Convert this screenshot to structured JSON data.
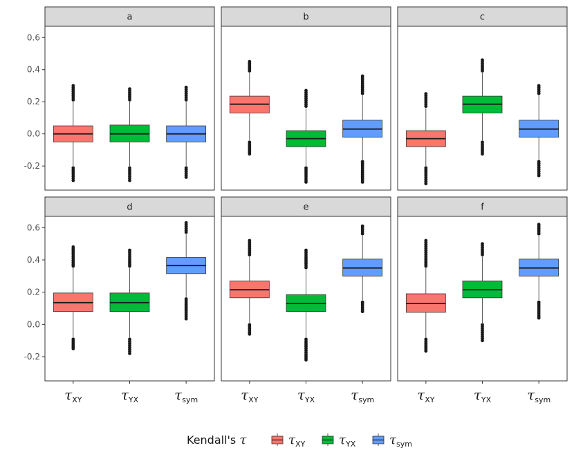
{
  "chart_data": {
    "type": "boxplot",
    "layout": "facet-grid 2x3",
    "y_ticks": [
      -0.2,
      0.0,
      0.2,
      0.4,
      0.6
    ],
    "y_tick_labels": [
      "-0.2",
      "0.0",
      "0.2",
      "0.4",
      "0.6"
    ],
    "ylim": [
      -0.35,
      0.67
    ],
    "categories": [
      {
        "key": "xy",
        "symbol": "τ",
        "sub": "XY",
        "color": "#F8766D"
      },
      {
        "key": "yx",
        "symbol": "τ",
        "sub": "YX",
        "color": "#00BA38"
      },
      {
        "key": "sym",
        "symbol": "τ",
        "sub": "sym",
        "color": "#619CFF"
      }
    ],
    "legend": {
      "title": "Kendall's",
      "title_symbol": "τ",
      "position": "bottom",
      "items": [
        {
          "symbol": "τ",
          "sub": "XY",
          "color": "#F8766D"
        },
        {
          "symbol": "τ",
          "sub": "YX",
          "color": "#00BA38"
        },
        {
          "symbol": "τ",
          "sub": "sym",
          "color": "#619CFF"
        }
      ]
    },
    "facets": [
      {
        "label": "a",
        "boxes": [
          {
            "q1": -0.05,
            "median": 0.0,
            "q3": 0.05,
            "wmin": -0.2,
            "wmax": 0.2,
            "outlier_lo": -0.29,
            "outlier_hi": 0.3
          },
          {
            "q1": -0.05,
            "median": 0.0,
            "q3": 0.055,
            "wmin": -0.2,
            "wmax": 0.2,
            "outlier_lo": -0.29,
            "outlier_hi": 0.28
          },
          {
            "q1": -0.05,
            "median": 0.0,
            "q3": 0.05,
            "wmin": -0.2,
            "wmax": 0.2,
            "outlier_lo": -0.27,
            "outlier_hi": 0.29
          }
        ]
      },
      {
        "label": "b",
        "boxes": [
          {
            "q1": 0.13,
            "median": 0.185,
            "q3": 0.235,
            "wmin": -0.04,
            "wmax": 0.38,
            "outlier_lo": -0.125,
            "outlier_hi": 0.45
          },
          {
            "q1": -0.08,
            "median": -0.03,
            "q3": 0.02,
            "wmin": -0.2,
            "wmax": 0.16,
            "outlier_lo": -0.3,
            "outlier_hi": 0.27
          },
          {
            "q1": -0.02,
            "median": 0.03,
            "q3": 0.085,
            "wmin": -0.16,
            "wmax": 0.24,
            "outlier_lo": -0.3,
            "outlier_hi": 0.36
          }
        ]
      },
      {
        "label": "c",
        "boxes": [
          {
            "q1": -0.08,
            "median": -0.03,
            "q3": 0.02,
            "wmin": -0.2,
            "wmax": 0.16,
            "outlier_lo": -0.31,
            "outlier_hi": 0.25
          },
          {
            "q1": 0.13,
            "median": 0.185,
            "q3": 0.235,
            "wmin": -0.04,
            "wmax": 0.38,
            "outlier_lo": -0.125,
            "outlier_hi": 0.46
          },
          {
            "q1": -0.02,
            "median": 0.03,
            "q3": 0.085,
            "wmin": -0.16,
            "wmax": 0.24,
            "outlier_lo": -0.26,
            "outlier_hi": 0.3
          }
        ]
      },
      {
        "label": "d",
        "boxes": [
          {
            "q1": 0.08,
            "median": 0.135,
            "q3": 0.195,
            "wmin": -0.08,
            "wmax": 0.35,
            "outlier_lo": -0.15,
            "outlier_hi": 0.48
          },
          {
            "q1": 0.08,
            "median": 0.135,
            "q3": 0.195,
            "wmin": -0.08,
            "wmax": 0.35,
            "outlier_lo": -0.18,
            "outlier_hi": 0.46
          },
          {
            "q1": 0.315,
            "median": 0.365,
            "q3": 0.415,
            "wmin": 0.17,
            "wmax": 0.56,
            "outlier_lo": 0.035,
            "outlier_hi": 0.63
          }
        ]
      },
      {
        "label": "e",
        "boxes": [
          {
            "q1": 0.165,
            "median": 0.215,
            "q3": 0.27,
            "wmin": 0.01,
            "wmax": 0.42,
            "outlier_lo": -0.06,
            "outlier_hi": 0.52
          },
          {
            "q1": 0.08,
            "median": 0.13,
            "q3": 0.185,
            "wmin": -0.08,
            "wmax": 0.34,
            "outlier_lo": -0.22,
            "outlier_hi": 0.46
          },
          {
            "q1": 0.3,
            "median": 0.35,
            "q3": 0.405,
            "wmin": 0.15,
            "wmax": 0.55,
            "outlier_lo": 0.08,
            "outlier_hi": 0.61
          }
        ]
      },
      {
        "label": "f",
        "boxes": [
          {
            "q1": 0.075,
            "median": 0.13,
            "q3": 0.19,
            "wmin": -0.08,
            "wmax": 0.35,
            "outlier_lo": -0.165,
            "outlier_hi": 0.52
          },
          {
            "q1": 0.165,
            "median": 0.215,
            "q3": 0.27,
            "wmin": 0.01,
            "wmax": 0.42,
            "outlier_lo": -0.1,
            "outlier_hi": 0.5
          },
          {
            "q1": 0.3,
            "median": 0.35,
            "q3": 0.405,
            "wmin": 0.15,
            "wmax": 0.55,
            "outlier_lo": 0.04,
            "outlier_hi": 0.62
          }
        ]
      }
    ]
  }
}
